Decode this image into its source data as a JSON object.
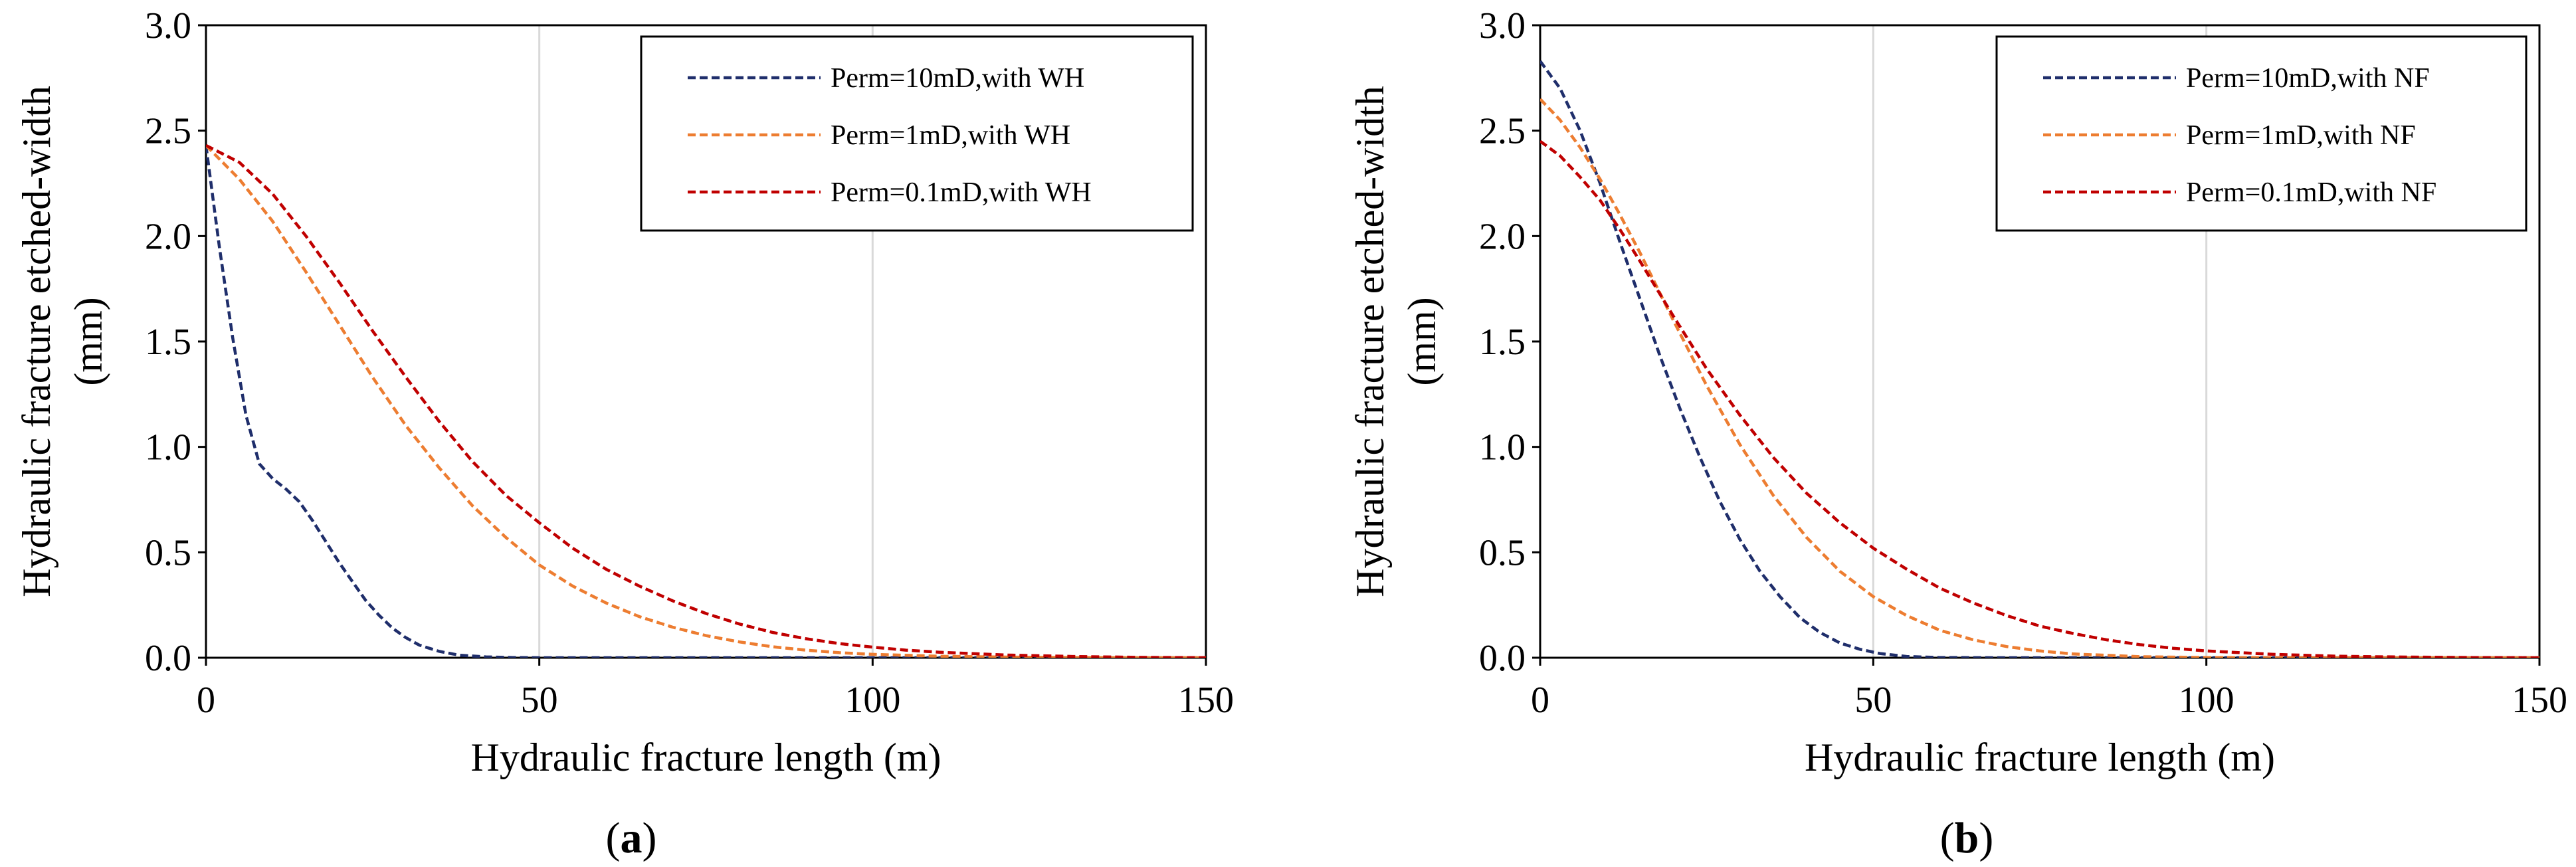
{
  "chart_data": [
    {
      "type": "line",
      "panel_label": "a",
      "xlabel": "Hydraulic fracture length (m)",
      "ylabel_line1": "Hydraulic fracture etched-width",
      "ylabel_line2": "(mm)",
      "xlim": [
        0,
        150
      ],
      "ylim": [
        0,
        3.0
      ],
      "xticks": [
        0,
        50,
        100,
        150
      ],
      "xtick_labels": [
        "0",
        "50",
        "100",
        "150"
      ],
      "yticks": [
        0,
        0.5,
        1.0,
        1.5,
        2.0,
        2.5,
        3.0
      ],
      "ytick_labels": [
        "0.0",
        "0.5",
        "1.0",
        "1.5",
        "2.0",
        "2.5",
        "3.0"
      ],
      "grid": "vertical",
      "legend_position": "top-right",
      "series": [
        {
          "name": "Perm=10mD,with WH",
          "color": "#1f2e6b",
          "x": [
            0,
            2,
            4,
            6,
            8,
            10,
            12,
            14,
            16,
            18,
            20,
            22,
            24,
            26,
            28,
            30,
            32,
            35,
            38,
            42,
            46,
            50,
            60,
            80,
            100,
            150
          ],
          "y": [
            2.43,
            1.95,
            1.52,
            1.15,
            0.92,
            0.85,
            0.8,
            0.74,
            0.65,
            0.55,
            0.45,
            0.36,
            0.27,
            0.2,
            0.14,
            0.095,
            0.06,
            0.03,
            0.012,
            0.004,
            0.001,
            0.0,
            0.0,
            0.0,
            0.0,
            0.0
          ]
        },
        {
          "name": "Perm=1mD,with WH",
          "color": "#ed7d31",
          "x": [
            0,
            5,
            10,
            15,
            20,
            25,
            30,
            35,
            40,
            45,
            50,
            55,
            60,
            65,
            70,
            75,
            80,
            85,
            90,
            95,
            100,
            110,
            120,
            130,
            140,
            150
          ],
          "y": [
            2.43,
            2.27,
            2.07,
            1.83,
            1.58,
            1.33,
            1.1,
            0.9,
            0.72,
            0.57,
            0.44,
            0.34,
            0.26,
            0.195,
            0.145,
            0.105,
            0.075,
            0.052,
            0.036,
            0.024,
            0.016,
            0.007,
            0.003,
            0.001,
            0.0,
            0.0
          ]
        },
        {
          "name": "Perm=0.1mD,with WH",
          "color": "#c00000",
          "x": [
            0,
            5,
            10,
            15,
            20,
            25,
            30,
            35,
            40,
            45,
            50,
            55,
            60,
            65,
            70,
            75,
            80,
            85,
            90,
            95,
            100,
            105,
            110,
            120,
            130,
            140,
            150
          ],
          "y": [
            2.43,
            2.35,
            2.2,
            2.0,
            1.78,
            1.55,
            1.33,
            1.12,
            0.93,
            0.77,
            0.64,
            0.52,
            0.42,
            0.34,
            0.27,
            0.21,
            0.16,
            0.12,
            0.09,
            0.067,
            0.05,
            0.036,
            0.026,
            0.013,
            0.006,
            0.002,
            0.0
          ]
        }
      ]
    },
    {
      "type": "line",
      "panel_label": "b",
      "xlabel": "Hydraulic fracture length (m)",
      "ylabel_line1": "Hydraulic fracture etched-width",
      "ylabel_line2": "(mm)",
      "xlim": [
        0,
        150
      ],
      "ylim": [
        0,
        3.0
      ],
      "xticks": [
        0,
        50,
        100,
        150
      ],
      "xtick_labels": [
        "0",
        "50",
        "100",
        "150"
      ],
      "yticks": [
        0,
        0.5,
        1.0,
        1.5,
        2.0,
        2.5,
        3.0
      ],
      "ytick_labels": [
        "0.0",
        "0.5",
        "1.0",
        "1.5",
        "2.0",
        "2.5",
        "3.0"
      ],
      "grid": "vertical",
      "legend_position": "top-right",
      "series": [
        {
          "name": "Perm=10mD,with NF",
          "color": "#1f2e6b",
          "x": [
            0,
            3,
            6,
            9,
            12,
            15,
            18,
            21,
            24,
            27,
            30,
            33,
            36,
            39,
            42,
            45,
            48,
            51,
            55,
            60,
            70,
            100,
            150
          ],
          "y": [
            2.83,
            2.7,
            2.5,
            2.25,
            1.97,
            1.7,
            1.43,
            1.18,
            0.95,
            0.74,
            0.56,
            0.41,
            0.29,
            0.19,
            0.12,
            0.07,
            0.04,
            0.02,
            0.006,
            0.001,
            0.0,
            0.0,
            0.0
          ]
        },
        {
          "name": "Perm=1mD,with NF",
          "color": "#ed7d31",
          "x": [
            0,
            3,
            6,
            9,
            12,
            15,
            20,
            25,
            30,
            35,
            40,
            45,
            50,
            55,
            60,
            65,
            70,
            75,
            80,
            90,
            100,
            110,
            150
          ],
          "y": [
            2.65,
            2.55,
            2.42,
            2.27,
            2.1,
            1.92,
            1.6,
            1.29,
            1.01,
            0.77,
            0.57,
            0.41,
            0.29,
            0.2,
            0.13,
            0.085,
            0.053,
            0.032,
            0.018,
            0.005,
            0.001,
            0.0,
            0.0
          ]
        },
        {
          "name": "Perm=0.1mD,with NF",
          "color": "#c00000",
          "x": [
            0,
            3,
            6,
            9,
            12,
            15,
            20,
            25,
            30,
            35,
            40,
            45,
            50,
            55,
            60,
            65,
            70,
            75,
            80,
            85,
            90,
            95,
            100,
            110,
            120,
            130,
            140,
            150
          ],
          "y": [
            2.45,
            2.38,
            2.28,
            2.17,
            2.03,
            1.88,
            1.62,
            1.37,
            1.15,
            0.95,
            0.78,
            0.64,
            0.52,
            0.42,
            0.33,
            0.26,
            0.2,
            0.15,
            0.115,
            0.085,
            0.062,
            0.045,
            0.032,
            0.016,
            0.007,
            0.003,
            0.001,
            0.0
          ]
        }
      ]
    }
  ]
}
